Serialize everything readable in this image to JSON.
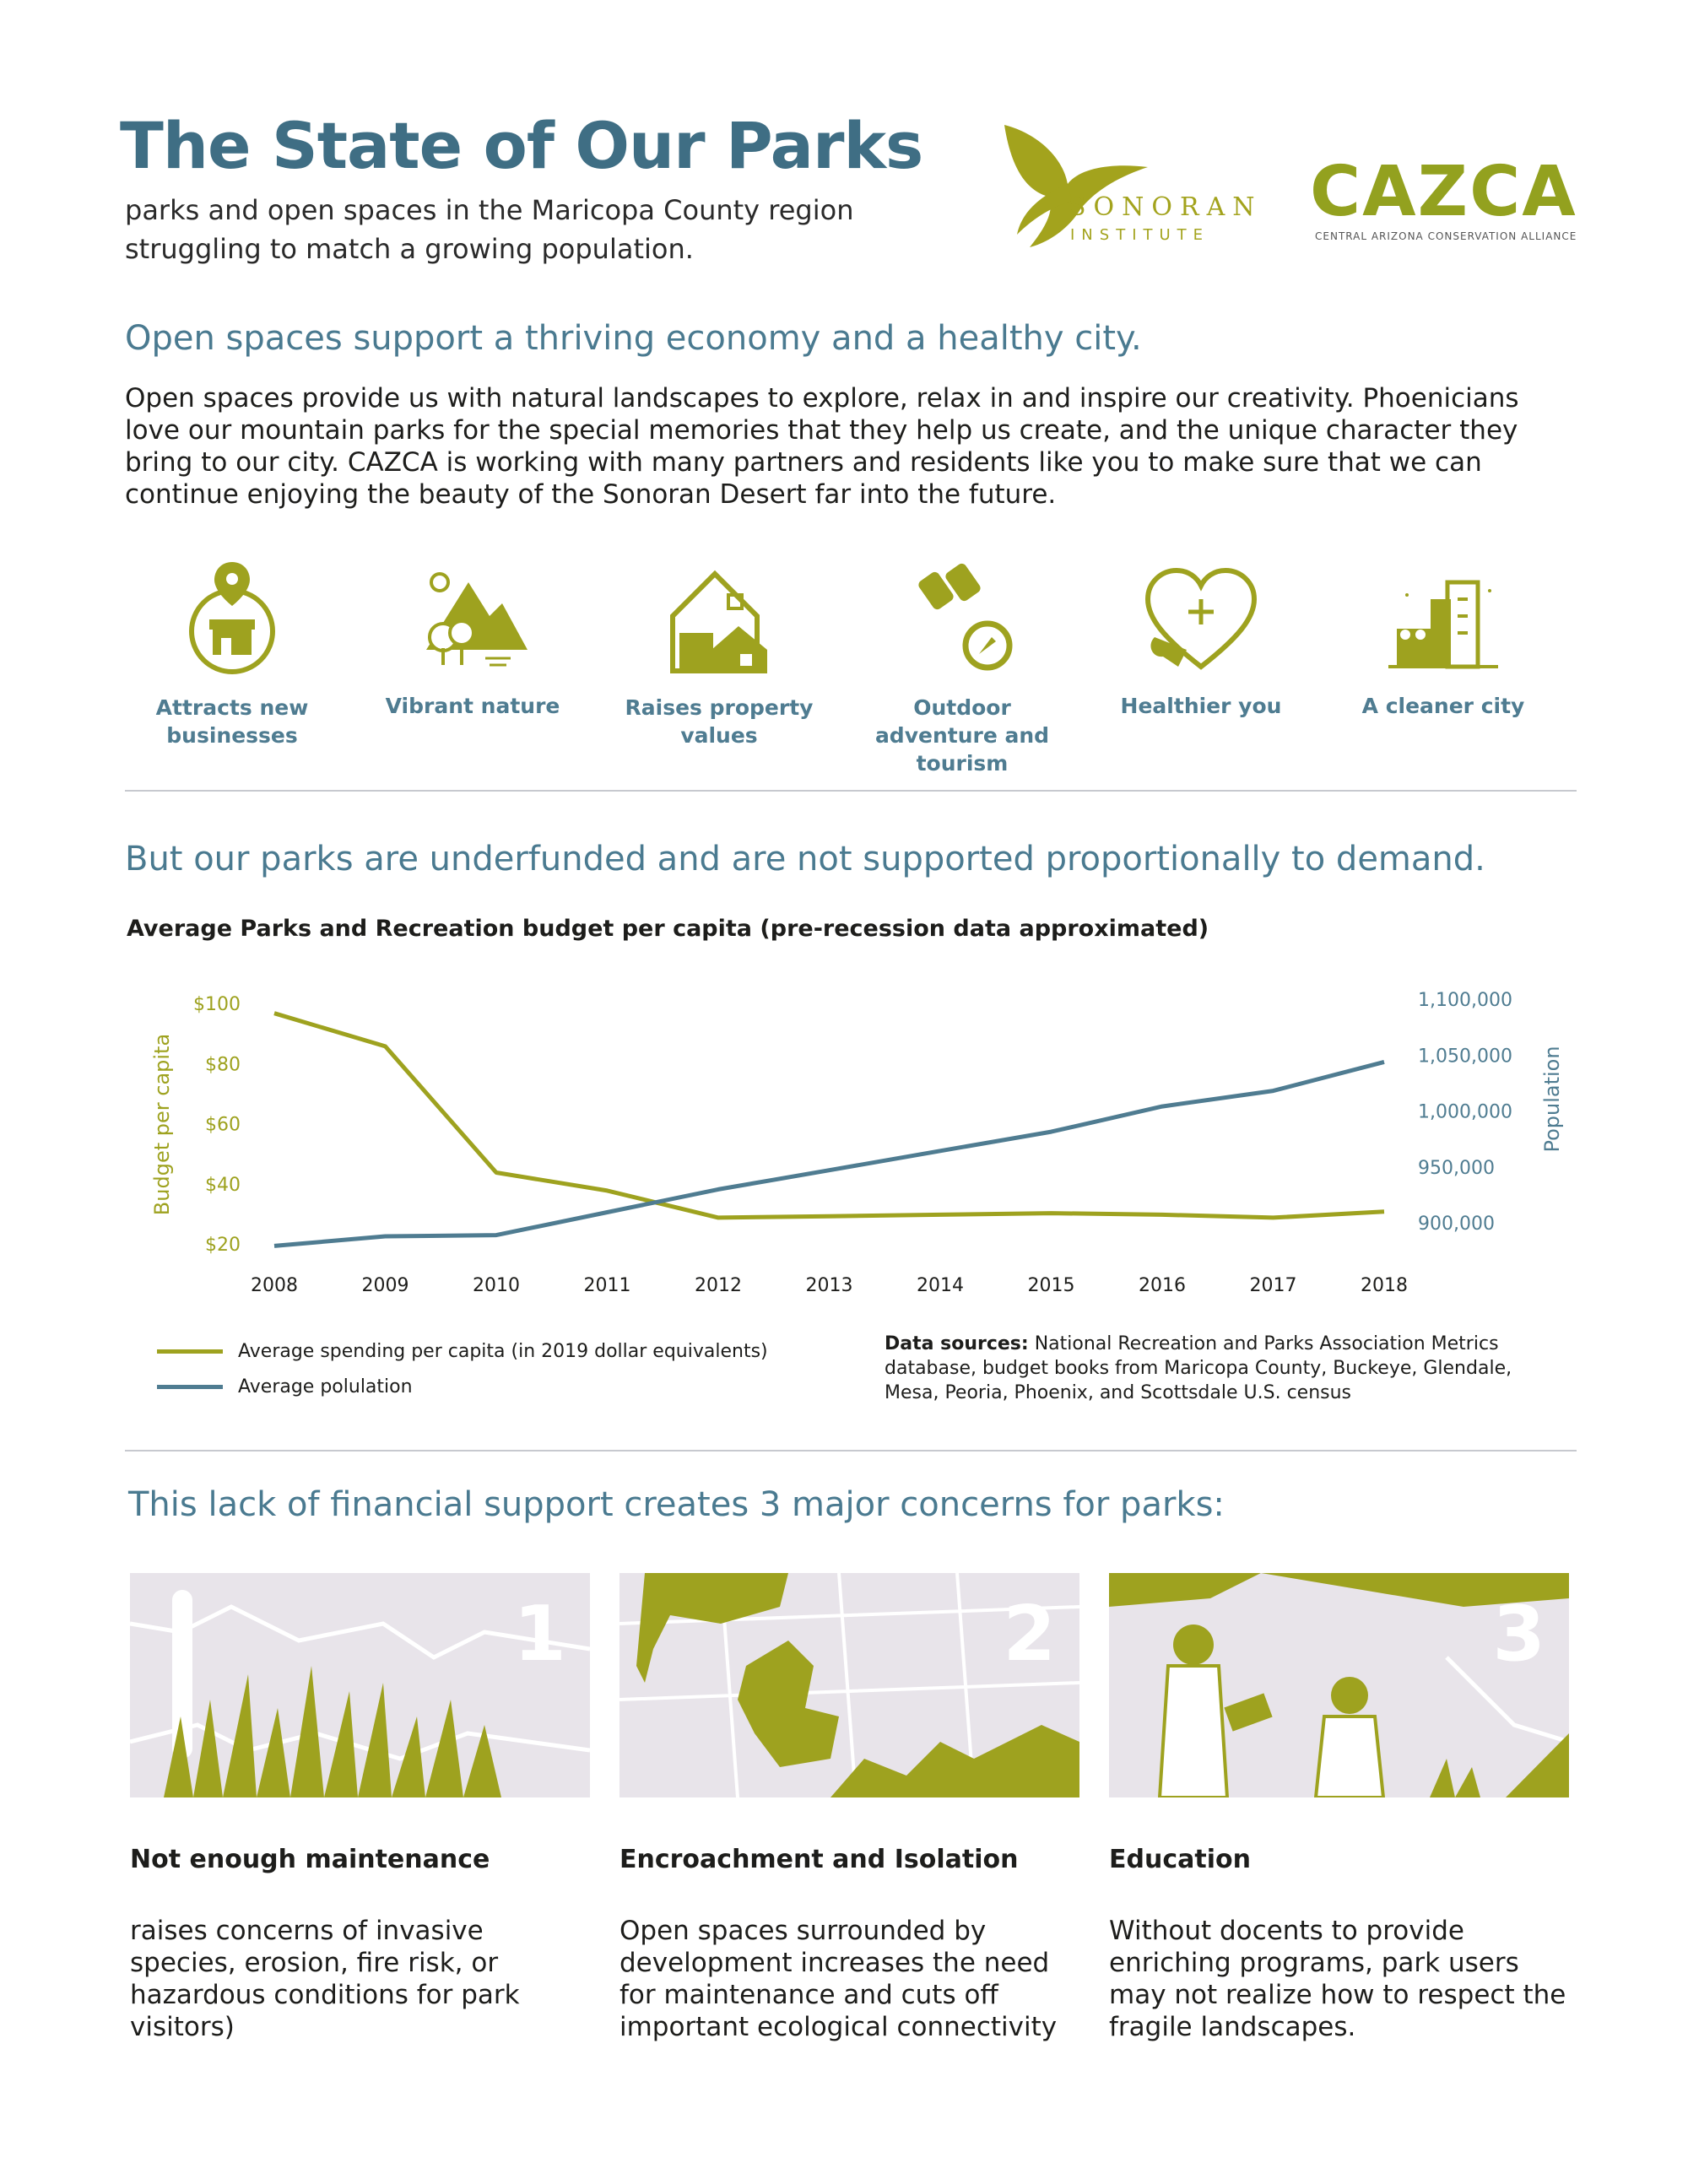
{
  "header": {
    "title": "The State of Our Parks",
    "subtitle": "parks and open spaces in the Maricopa County region struggling to match a growing population."
  },
  "logos": {
    "sonoran_name": "SONORAN",
    "sonoran_sub": "INSTITUTE",
    "cazca_name": "CAZCA",
    "cazca_sub": "CENTRAL ARIZONA CONSERVATION ALLIANCE"
  },
  "section1": {
    "heading": "Open spaces support a thriving economy and a healthy city.",
    "body": "Open spaces provide us with natural landscapes to explore, relax in and inspire our creativity. Phoenicians love our mountain parks for the special memories that they help us create, and the unique character they bring to our city. CAZCA is working with many partners and residents like you to make sure that we can continue enjoying the beauty of the Sonoran Desert far into the future."
  },
  "benefits": [
    {
      "label": "Attracts new businesses",
      "icon": "storefront-pin-icon"
    },
    {
      "label": "Vibrant nature",
      "icon": "mountain-trees-icon"
    },
    {
      "label": "Raises property values",
      "icon": "house-icon"
    },
    {
      "label": "Outdoor adventure and tourism",
      "icon": "binoculars-compass-icon"
    },
    {
      "label": "Healthier you",
      "icon": "heart-plus-icon"
    },
    {
      "label": "A cleaner city",
      "icon": "city-trees-icon"
    }
  ],
  "section2": {
    "heading": "But our parks are underfunded and are not supported proportionally to demand."
  },
  "chart_data": {
    "type": "line",
    "title": "Average Parks and Recreation budget per capita (pre-recession data approximated)",
    "x": [
      "2008",
      "2009",
      "2010",
      "2011",
      "2012",
      "2013",
      "2014",
      "2015",
      "2016",
      "2017",
      "2018"
    ],
    "y_left_label": "Budget per capita",
    "y_right_label": "Population",
    "y_left_ticks": [
      "$100",
      "$80",
      "$60",
      "$40",
      "$20"
    ],
    "y_right_ticks": [
      "1,100,000",
      "1,050,000",
      "1,000,000",
      "950,000",
      "900,000"
    ],
    "ylim_left": [
      20,
      100
    ],
    "ylim_right": [
      900000,
      1100000
    ],
    "grid": false,
    "series": [
      {
        "name": "Average spending per capita (in 2019 dollar equivalents)",
        "axis": "left",
        "color": "#9ea21f",
        "values": [
          97,
          86,
          44,
          38,
          29,
          29.5,
          30,
          30.5,
          30,
          29,
          31
        ]
      },
      {
        "name": "Average polulation",
        "axis": "right",
        "color": "#4f7c91",
        "values": [
          899000,
          907000,
          908000,
          927000,
          946000,
          962000,
          978000,
          994000,
          1015000,
          1028000,
          1052000
        ]
      }
    ],
    "sources_label": "Data sources:",
    "sources_text": "National Recreation and Parks Association Metrics database, budget books from Maricopa County, Buckeye, Glendale, Mesa, Peoria, Phoenix, and Scottsdale U.S. census"
  },
  "section3": {
    "heading": "This lack of financial support creates 3 major concerns for parks:"
  },
  "concerns": [
    {
      "num": "1",
      "title": "Not enough maintenance",
      "desc": "raises concerns of invasive species, erosion, fire risk, or hazardous conditions for park visitors)"
    },
    {
      "num": "2",
      "title": "Encroachment and Isolation",
      "desc": "Open spaces surrounded by development increases the need for maintenance and cuts off important ecological connectivity"
    },
    {
      "num": "3",
      "title": "Education",
      "desc": "Without docents to provide enriching programs, park users may not realize how to respect the fragile landscapes."
    }
  ],
  "colors": {
    "olive": "#9ea21f",
    "slate_blue": "#4f7c91",
    "title_blue": "#3f6e84",
    "tile_bg": "#e8e4ea"
  }
}
